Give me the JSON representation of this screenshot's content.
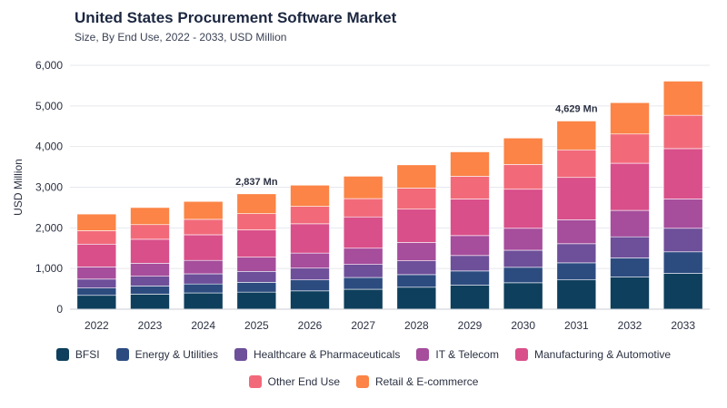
{
  "chart_data": {
    "type": "bar",
    "stacked": true,
    "title": "United States Procurement Software Market",
    "subtitle": "Size, By End Use, 2022 - 2033, USD Million",
    "ylabel": "USD Million",
    "xlabel": "",
    "ylim": [
      0,
      6000
    ],
    "yticks": [
      "0",
      "1,000",
      "2,000",
      "3,000",
      "4,000",
      "5,000",
      "6,000"
    ],
    "grid": true,
    "legend_position": "bottom",
    "categories": [
      "2022",
      "2023",
      "2024",
      "2025",
      "2026",
      "2027",
      "2028",
      "2029",
      "2030",
      "2031",
      "2032",
      "2033"
    ],
    "series": [
      {
        "name": "BFSI",
        "color": "#0e3f5c",
        "values": [
          340,
          370,
          400,
          420,
          450,
          490,
          540,
          590,
          650,
          720,
          790,
          880
        ]
      },
      {
        "name": "Energy & Utilities",
        "color": "#2c4c80",
        "values": [
          180,
          200,
          220,
          240,
          270,
          290,
          310,
          350,
          380,
          420,
          470,
          530
        ]
      },
      {
        "name": "Healthcare & Pharmaceuticals",
        "color": "#6d4f9a",
        "values": [
          220,
          240,
          250,
          270,
          290,
          320,
          340,
          380,
          420,
          470,
          520,
          580
        ]
      },
      {
        "name": "IT & Telecom",
        "color": "#a64d9c",
        "values": [
          300,
          320,
          330,
          350,
          370,
          400,
          450,
          490,
          540,
          590,
          650,
          720
        ]
      },
      {
        "name": "Manufacturing & Automotive",
        "color": "#d94f8a",
        "values": [
          560,
          590,
          630,
          670,
          720,
          770,
          820,
          900,
          960,
          1040,
          1160,
          1240
        ]
      },
      {
        "name": "Other End Use",
        "color": "#f26a7a",
        "values": [
          330,
          360,
          380,
          400,
          430,
          450,
          520,
          560,
          610,
          680,
          720,
          820
        ]
      },
      {
        "name": "Retail & E-commerce",
        "color": "#fb8446",
        "values": [
          410,
          420,
          440,
          487,
          520,
          550,
          570,
          600,
          650,
          709,
          770,
          840
        ]
      }
    ],
    "annotations": [
      {
        "category": "2025",
        "text": "2,837 Mn"
      },
      {
        "category": "2031",
        "text": "4,629 Mn"
      }
    ]
  }
}
